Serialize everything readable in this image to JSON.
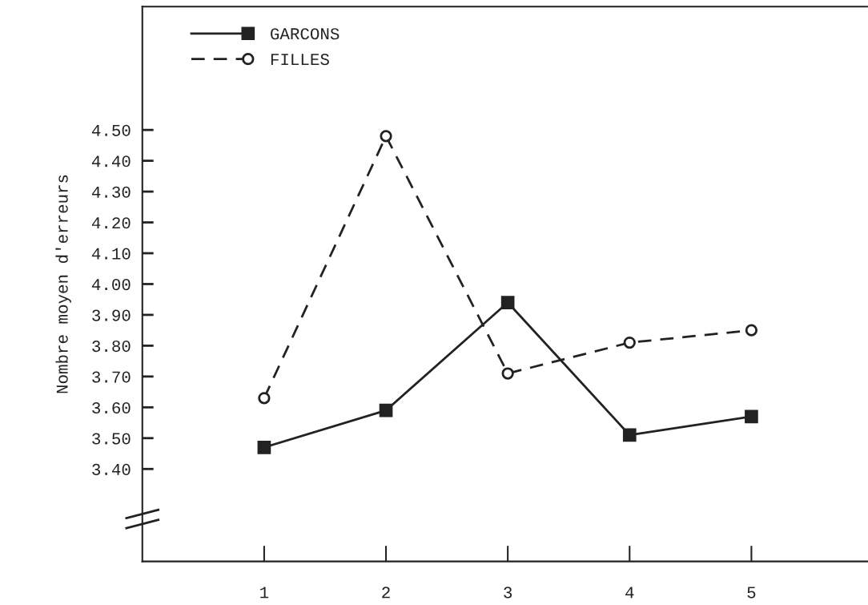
{
  "chart_data": {
    "type": "line",
    "ylabel": "Nombre moyen d'erreurs",
    "categories": [
      "1",
      "2",
      "3",
      "4",
      "5"
    ],
    "series": [
      {
        "name": "GARCONS",
        "color": "#222222",
        "values": [
          3.47,
          3.59,
          3.94,
          3.51,
          3.57
        ],
        "marker": "square",
        "line_style": "solid"
      },
      {
        "name": "FILLES",
        "color": "#222222",
        "values": [
          3.63,
          4.48,
          3.71,
          3.81,
          3.85
        ],
        "marker": "circle",
        "line_style": "dashed"
      }
    ],
    "ylim": [
      3.1,
      4.9
    ],
    "yticks": [
      {
        "value": 3.4,
        "label": "3.40"
      },
      {
        "value": 3.5,
        "label": "3.50"
      },
      {
        "value": 3.6,
        "label": "3.60"
      },
      {
        "value": 3.7,
        "label": "3.70"
      },
      {
        "value": 3.8,
        "label": "3.80"
      },
      {
        "value": 3.9,
        "label": "3.90"
      },
      {
        "value": 4.0,
        "label": "4.00"
      },
      {
        "value": 4.1,
        "label": "4.10"
      },
      {
        "value": 4.2,
        "label": "4.20"
      },
      {
        "value": 4.3,
        "label": "4.30"
      },
      {
        "value": 4.4,
        "label": "4.40"
      },
      {
        "value": 4.5,
        "label": "4.50"
      }
    ],
    "grid": false,
    "legend": "top left"
  }
}
